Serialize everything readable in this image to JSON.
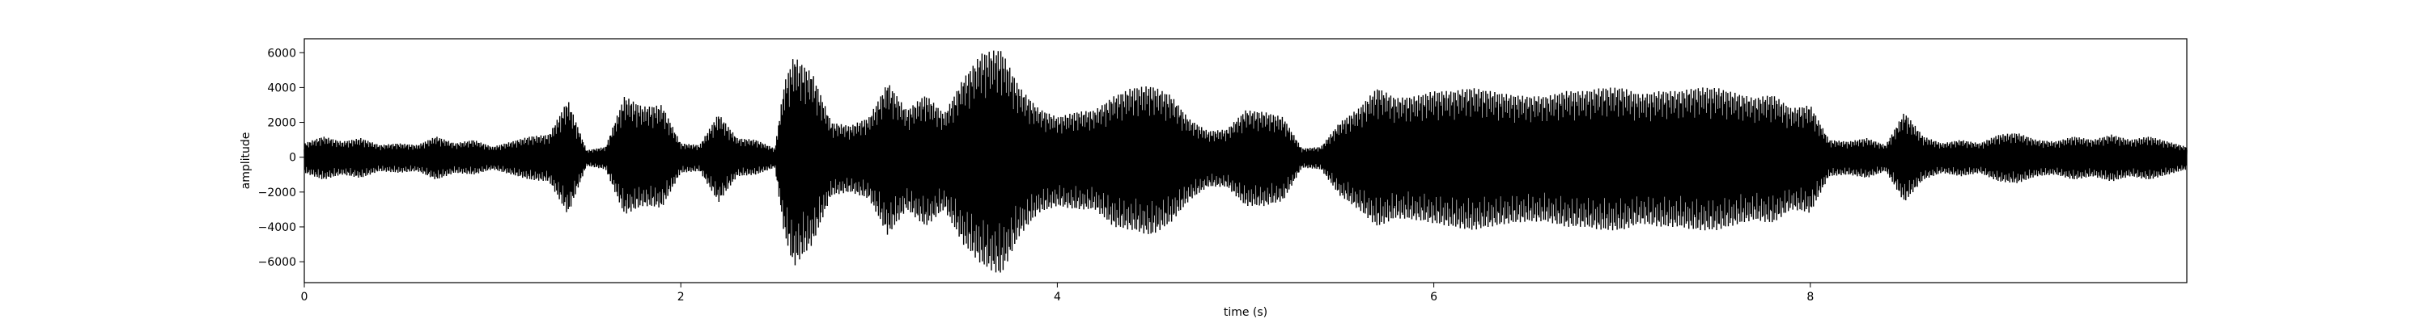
{
  "chart_data": {
    "type": "line",
    "xlabel": "time (s)",
    "ylabel": "amplitude",
    "xlim": [
      0,
      10
    ],
    "ylim": [
      -7200,
      6800
    ],
    "x_ticks": [
      0,
      2,
      4,
      6,
      8
    ],
    "y_ticks": [
      -6000,
      -4000,
      -2000,
      0,
      2000,
      4000,
      6000
    ],
    "grid": false,
    "series": [
      {
        "color": "#000000",
        "envelope": {
          "x": [
            0.0,
            0.1,
            0.2,
            0.3,
            0.4,
            0.5,
            0.6,
            0.7,
            0.8,
            0.9,
            1.0,
            1.1,
            1.2,
            1.3,
            1.4,
            1.5,
            1.6,
            1.7,
            1.8,
            1.9,
            2.0,
            2.1,
            2.2,
            2.3,
            2.4,
            2.5,
            2.55,
            2.6,
            2.7,
            2.8,
            2.9,
            3.0,
            3.1,
            3.2,
            3.3,
            3.4,
            3.5,
            3.6,
            3.7,
            3.8,
            3.9,
            4.0,
            4.1,
            4.2,
            4.3,
            4.4,
            4.5,
            4.6,
            4.7,
            4.8,
            4.9,
            5.0,
            5.1,
            5.2,
            5.3,
            5.4,
            5.5,
            5.6,
            5.7,
            5.8,
            5.9,
            6.0,
            6.1,
            6.2,
            6.3,
            6.4,
            6.5,
            6.6,
            6.7,
            6.8,
            6.9,
            7.0,
            7.1,
            7.2,
            7.3,
            7.4,
            7.5,
            7.6,
            7.7,
            7.8,
            7.9,
            8.0,
            8.1,
            8.2,
            8.3,
            8.4,
            8.5,
            8.6,
            8.7,
            8.8,
            8.9,
            9.0,
            9.1,
            9.2,
            9.3,
            9.4,
            9.5,
            9.6,
            9.7,
            9.8,
            9.9,
            10.0
          ],
          "y_max": [
            800,
            1200,
            900,
            1100,
            700,
            800,
            700,
            1200,
            800,
            1000,
            600,
            900,
            1200,
            1300,
            3300,
            400,
            600,
            3500,
            2900,
            3000,
            800,
            700,
            2500,
            1100,
            1000,
            500,
            4300,
            5800,
            4800,
            2000,
            1800,
            2300,
            4300,
            2700,
            3600,
            2500,
            4500,
            6000,
            6200,
            4000,
            2800,
            2300,
            2600,
            2700,
            3500,
            4000,
            4100,
            3600,
            2200,
            1500,
            1600,
            2700,
            2600,
            2300,
            500,
            600,
            2000,
            2800,
            4000,
            3400,
            3500,
            3800,
            3800,
            4000,
            3800,
            3600,
            3500,
            3500,
            3800,
            3800,
            4000,
            4000,
            3600,
            3800,
            3800,
            4000,
            4000,
            3700,
            3400,
            3600,
            2800,
            3000,
            1000,
            900,
            1100,
            700,
            2600,
            1200,
            800,
            1000,
            800,
            1300,
            1400,
            1000,
            900,
            1200,
            1000,
            1300,
            1000,
            1200,
            900,
            600
          ],
          "y_min": [
            -900,
            -1300,
            -1000,
            -1200,
            -800,
            -900,
            -800,
            -1300,
            -900,
            -1000,
            -700,
            -1000,
            -1300,
            -1400,
            -3300,
            -500,
            -700,
            -3300,
            -2800,
            -2900,
            -900,
            -800,
            -2600,
            -1100,
            -1000,
            -600,
            -4500,
            -6300,
            -5000,
            -2200,
            -2000,
            -2400,
            -4500,
            -3000,
            -4000,
            -3000,
            -5000,
            -6200,
            -6800,
            -4500,
            -3200,
            -2800,
            -3000,
            -3000,
            -4000,
            -4200,
            -4500,
            -3800,
            -2500,
            -1700,
            -1700,
            -2800,
            -2800,
            -2500,
            -600,
            -700,
            -2200,
            -3000,
            -4000,
            -3500,
            -3600,
            -3800,
            -4000,
            -4200,
            -4000,
            -3800,
            -3700,
            -3700,
            -4000,
            -4000,
            -4200,
            -4200,
            -3800,
            -4000,
            -4000,
            -4200,
            -4200,
            -3900,
            -3600,
            -3800,
            -3000,
            -3200,
            -1100,
            -1000,
            -1200,
            -800,
            -2600,
            -1300,
            -900,
            -1100,
            -900,
            -1400,
            -1500,
            -1100,
            -1000,
            -1300,
            -1100,
            -1400,
            -1100,
            -1300,
            -1000,
            -700
          ]
        }
      }
    ]
  }
}
